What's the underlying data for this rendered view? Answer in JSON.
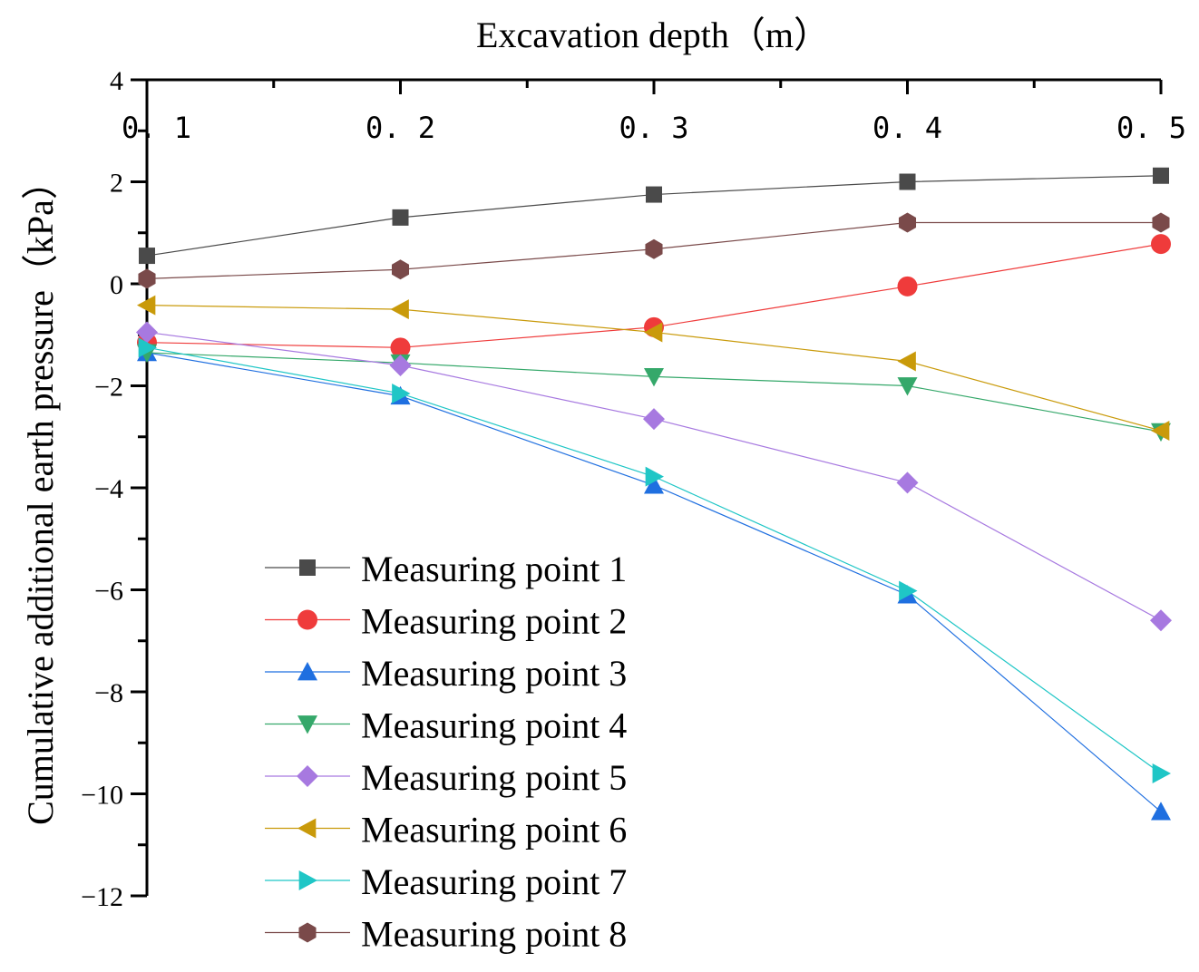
{
  "chart_data": {
    "type": "line",
    "title": "Excavation depth（m）",
    "xlabel": "Excavation depth（m）",
    "ylabel": "Cumulative additional earth pressure（kPa）",
    "x": [
      0.1,
      0.2,
      0.3,
      0.4,
      0.5
    ],
    "x_tick_labels": [
      "0. 1",
      "0. 2",
      "0. 3",
      "0. 4",
      "0. 5"
    ],
    "xlim": [
      0.1,
      0.5
    ],
    "ylim": [
      -12,
      4
    ],
    "y_ticks": [
      4,
      2,
      0,
      -2,
      -4,
      -6,
      -8,
      -10,
      -12
    ],
    "y_tick_labels": [
      "4",
      "2",
      "0",
      "−2",
      "−4",
      "−6",
      "−8",
      "−10",
      "−12"
    ],
    "x_axis_position": "top",
    "grid": false,
    "legend_position": "bottom-left",
    "series": [
      {
        "name": "Measuring point 1",
        "marker": "square",
        "color": "#4a4a4a",
        "values": [
          0.55,
          1.3,
          1.75,
          2.0,
          2.12
        ]
      },
      {
        "name": "Measuring point 2",
        "marker": "circle",
        "color": "#ef3b3b",
        "values": [
          -1.15,
          -1.25,
          -0.85,
          -0.05,
          0.78
        ]
      },
      {
        "name": "Measuring point 3",
        "marker": "triangle-up",
        "color": "#1f6fe0",
        "values": [
          -1.35,
          -2.2,
          -3.95,
          -6.1,
          -10.35
        ]
      },
      {
        "name": "Measuring point 4",
        "marker": "triangle-down",
        "color": "#35a86a",
        "values": [
          -1.35,
          -1.55,
          -1.82,
          -2.0,
          -2.9
        ]
      },
      {
        "name": "Measuring point 5",
        "marker": "diamond",
        "color": "#a779e0",
        "values": [
          -0.95,
          -1.6,
          -2.65,
          -3.9,
          -6.6
        ]
      },
      {
        "name": "Measuring point 6",
        "marker": "triangle-left",
        "color": "#c99a0a",
        "values": [
          -0.42,
          -0.5,
          -0.95,
          -1.52,
          -2.88
        ]
      },
      {
        "name": "Measuring point 7",
        "marker": "triangle-right",
        "color": "#1fc6c6",
        "values": [
          -1.25,
          -2.15,
          -3.78,
          -6.02,
          -9.6
        ]
      },
      {
        "name": "Measuring point 8",
        "marker": "hexagon",
        "color": "#7a4a4a",
        "values": [
          0.1,
          0.28,
          0.68,
          1.2,
          1.2
        ]
      }
    ]
  }
}
